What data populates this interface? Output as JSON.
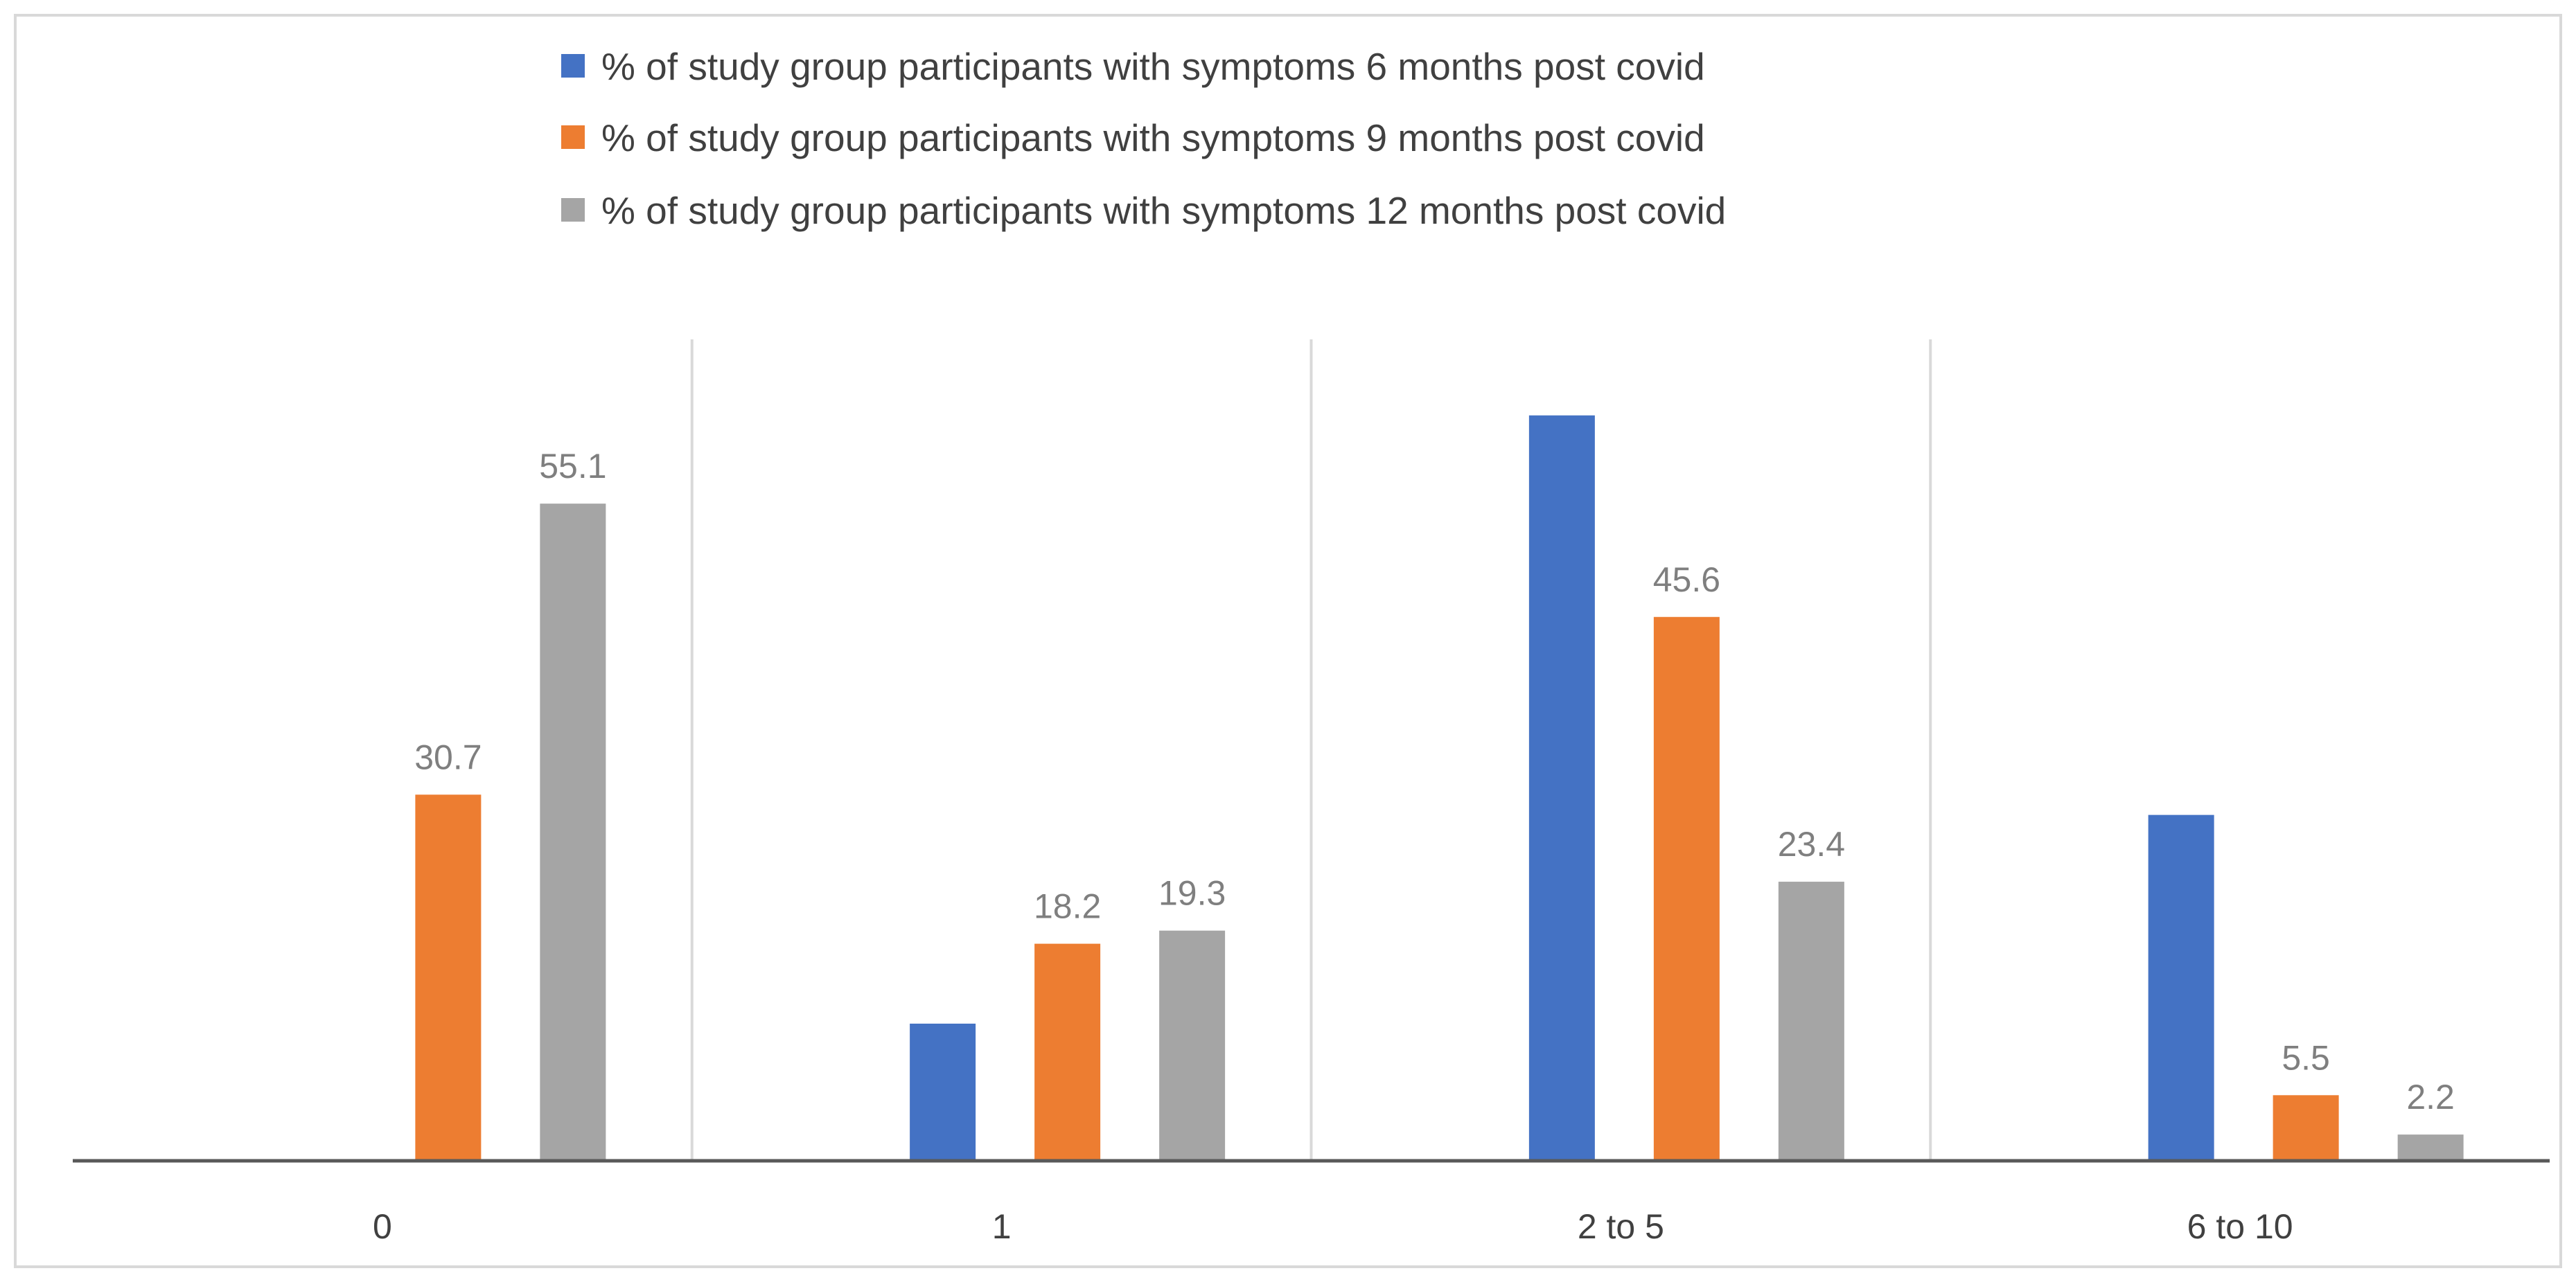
{
  "chart_data": {
    "type": "bar",
    "title": "",
    "xlabel": "",
    "ylabel": "",
    "categories": [
      "0",
      "1",
      "2 to 5",
      "6 to 10"
    ],
    "series": [
      {
        "name": "% of study group participants   with symptoms 6 months post covid",
        "color": "#4472c4",
        "values": [
          0,
          11.5,
          62.5,
          29
        ],
        "labels": [
          "",
          "",
          "",
          ""
        ]
      },
      {
        "name": "% of study group participants with symptoms 9 months post covid",
        "color": "#ed7d31",
        "values": [
          30.7,
          18.2,
          45.6,
          5.5
        ],
        "labels": [
          "30.7",
          "18.2",
          "45.6",
          "5.5"
        ]
      },
      {
        "name": "% of study group participants with symptoms 12 months post covid",
        "color": "#a5a5a5",
        "values": [
          55.1,
          19.3,
          23.4,
          2.2
        ],
        "labels": [
          "55.1",
          "19.3",
          "23.4",
          "2.2"
        ]
      }
    ],
    "ylim": [
      0,
      70
    ],
    "grid": false,
    "legend_position": "top-center",
    "frame_color": "#d9d9d9",
    "axis_color": "#595959"
  }
}
